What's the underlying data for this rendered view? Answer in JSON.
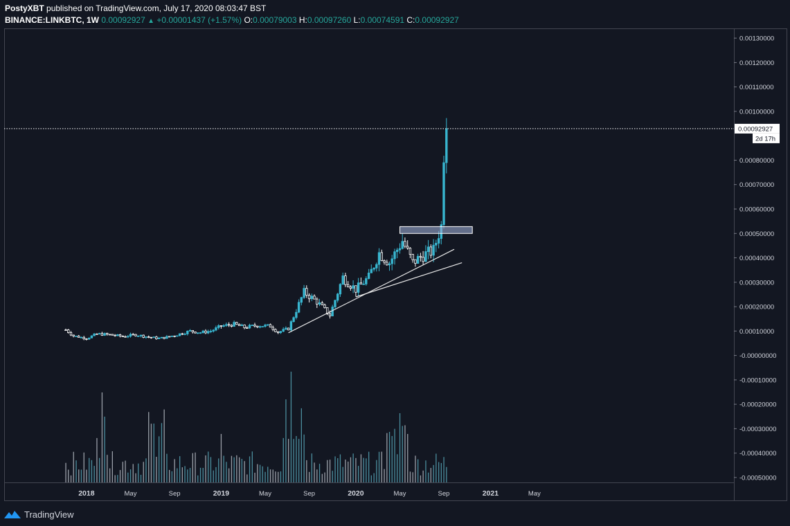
{
  "header": {
    "author": "PostyXBT",
    "published": "published on TradingView.com, July 17, 2020 08:03:47 BST",
    "symbol": "BINANCE:LINKBTC, 1W",
    "last": "0.00092927",
    "change": "+0.00001437 (+1.57%)",
    "o_label": "O:",
    "o": "0.00079003",
    "h_label": "H:",
    "h": "0.00097260",
    "l_label": "L:",
    "l": "0.00074591",
    "c_label": "C:",
    "c": "0.00092927"
  },
  "footer": {
    "brand": "TradingView"
  },
  "colors": {
    "background": "#131722",
    "up": "#38b6d0",
    "down": "#ffffff",
    "volume": "#5fb7c8",
    "zone": "#9aa8d0"
  },
  "chart_data": {
    "type": "candlestick",
    "price_axis": {
      "ylim": [
        -0.00052,
        0.00134
      ],
      "ticks": [
        "0.00130000",
        "0.00120000",
        "0.00110000",
        "0.00100000",
        "0.00080000",
        "0.00070000",
        "0.00060000",
        "0.00050000",
        "0.00040000",
        "0.00030000",
        "0.00020000",
        "0.00010000",
        "-0.00000000",
        "-0.00010000",
        "-0.00020000",
        "-0.00030000",
        "-0.00040000",
        "-0.00050000"
      ],
      "tick_values": [
        0.0013,
        0.0012,
        0.0011,
        0.001,
        0.0008,
        0.0007,
        0.0006,
        0.0005,
        0.0004,
        0.0003,
        0.0002,
        0.0001,
        0,
        -0.0001,
        -0.0002,
        -0.0003,
        -0.0004,
        -0.0005
      ],
      "last_price_label": "0.00092927",
      "last_price": 0.00092927,
      "countdown": "2d 17h"
    },
    "time_axis": {
      "labels": [
        "2018",
        "May",
        "Sep",
        "2019",
        "May",
        "Sep",
        "2020",
        "May",
        "Sep",
        "2021",
        "May"
      ],
      "label_weeks": [
        8,
        25,
        42,
        60,
        77,
        94,
        112,
        129,
        146,
        164,
        181
      ]
    },
    "anchors": {
      "week": [
        0,
        3,
        8,
        12,
        17,
        22,
        27,
        32,
        36,
        39,
        43,
        48,
        52,
        56,
        60,
        65,
        69,
        74,
        79,
        82,
        86,
        92,
        97,
        102,
        107,
        112,
        117,
        121,
        125,
        130,
        134,
        138,
        142,
        144,
        145,
        146,
        147
      ],
      "close": [
        0.000105,
        8e-05,
        7e-05,
        8.8e-05,
        8.5e-05,
        7.8e-05,
        8.5e-05,
        7.5e-05,
        7e-05,
        7.5e-05,
        8.5e-05,
        0.0001,
        9.4e-05,
        0.0001,
        0.00012,
        0.000128,
        0.000115,
        0.000123,
        0.00012,
        9.5e-05,
        0.00011,
        0.00026,
        0.00022,
        0.000165,
        0.00032,
        0.00027,
        0.00032,
        0.00042,
        0.00038,
        0.00047,
        0.00038,
        0.00041,
        0.00043,
        0.0005,
        0.00053,
        0.00079,
        0.00092927
      ],
      "final_candle": {
        "open": 0.00079003,
        "high": 0.0009726,
        "low": 0.00074591,
        "close": 0.00092927
      }
    },
    "volume_scale": 1,
    "trendlines": [
      {
        "from": [
          86,
          9.3e-05
        ],
        "to": [
          150,
          0.000435
        ]
      },
      {
        "from": [
          112,
          0.00024
        ],
        "to": [
          153,
          0.00038
        ]
      }
    ],
    "zone": {
      "x": [
        129,
        157
      ],
      "y": [
        0.0005,
        0.000528
      ]
    },
    "grid": false,
    "legend": "none"
  }
}
